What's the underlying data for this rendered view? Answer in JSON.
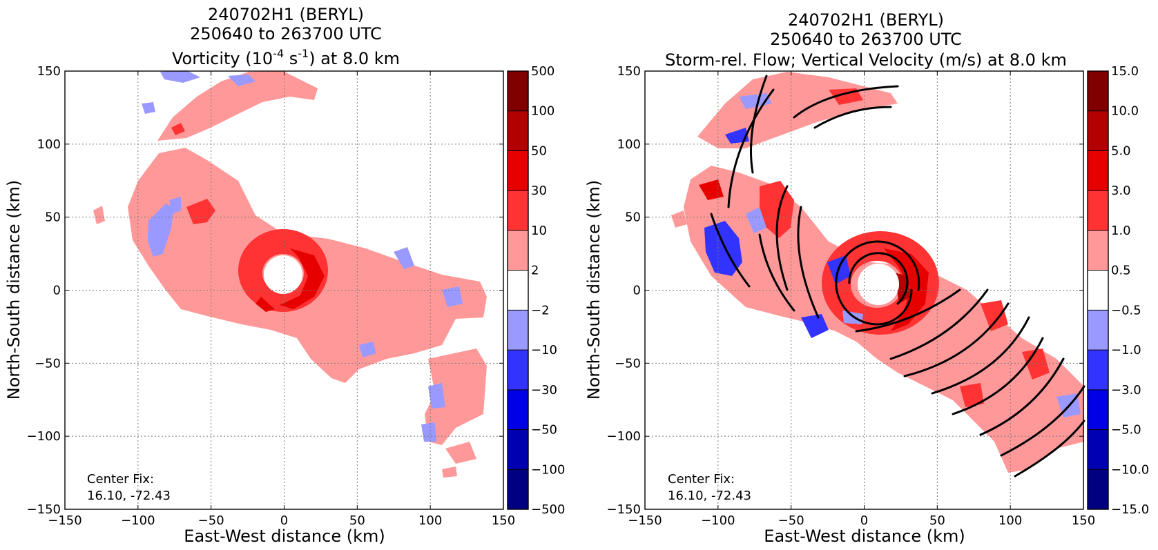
{
  "chart_data": [
    {
      "type": "heatmap",
      "title_lines": [
        "240702H1 (BERYL)",
        "250640 to 263700 UTC"
      ],
      "title_line3": {
        "pre": "Vorticity (10",
        "sup1": "-4",
        "mid": " s",
        "sup2": "-1",
        "post": ") at 8.0 km"
      },
      "xlabel": "East-West distance (km)",
      "ylabel": "North-South distance (km)",
      "xlim": [
        -150,
        150
      ],
      "ylim": [
        -150,
        150
      ],
      "xticks": [
        -150,
        -100,
        -50,
        0,
        50,
        100,
        150
      ],
      "yticks": [
        -150,
        -100,
        -50,
        0,
        50,
        100,
        150
      ],
      "xtick_labels": [
        "−150",
        "−100",
        "−50",
        "0",
        "50",
        "100",
        "150"
      ],
      "ytick_labels": [
        "−150",
        "−100",
        "−50",
        "0",
        "50",
        "100",
        "150"
      ],
      "grid": true,
      "center_fix": {
        "label": "Center Fix:",
        "value": "16.10, -72.43"
      },
      "colorbar": {
        "labels": [
          "500",
          "100",
          "50",
          "30",
          "10",
          "2",
          "−2",
          "−10",
          "−30",
          "−50",
          "−100",
          "−500"
        ],
        "colors": [
          "#800000",
          "#b30000",
          "#e60000",
          "#ff3333",
          "#ff9999",
          "#ffffff",
          "#9999ff",
          "#3333ff",
          "#0000e6",
          "#0000b3",
          "#000080"
        ]
      },
      "levels": {
        "pink": "#ff9999",
        "red": "#ff3333",
        "deepred": "#e60000",
        "lightblue": "#9999ff",
        "blue": "#3333ff"
      }
    },
    {
      "type": "heatmap",
      "title_lines": [
        "240702H1 (BERYL)",
        "250640 to 263700 UTC",
        "Storm-rel. Flow; Vertical Velocity (m/s) at 8.0 km"
      ],
      "xlabel": "East-West distance (km)",
      "ylabel": "North-South distance (km)",
      "xlim": [
        -150,
        150
      ],
      "ylim": [
        -150,
        150
      ],
      "xticks": [
        -150,
        -100,
        -50,
        0,
        50,
        100,
        150
      ],
      "yticks": [
        -150,
        -100,
        -50,
        0,
        50,
        100,
        150
      ],
      "xtick_labels": [
        "−150",
        "−100",
        "−50",
        "0",
        "50",
        "100",
        "150"
      ],
      "ytick_labels": [
        "−150",
        "−100",
        "−50",
        "0",
        "50",
        "100",
        "150"
      ],
      "grid": true,
      "center_fix": {
        "label": "Center Fix:",
        "value": "16.10, -72.43"
      },
      "colorbar": {
        "labels": [
          "15.0",
          "10.0",
          "5.0",
          "3.0",
          "1.0",
          "0.5",
          "−0.5",
          "−1.0",
          "−3.0",
          "−5.0",
          "−10.0",
          "−15.0"
        ],
        "colors": [
          "#800000",
          "#b30000",
          "#e60000",
          "#ff3333",
          "#ff9999",
          "#ffffff",
          "#9999ff",
          "#3333ff",
          "#0000e6",
          "#0000b3",
          "#000080"
        ]
      },
      "levels": {
        "pink": "#ff9999",
        "red": "#ff3333",
        "deepred": "#e60000",
        "lightblue": "#9999ff",
        "blue": "#3333ff"
      }
    }
  ]
}
